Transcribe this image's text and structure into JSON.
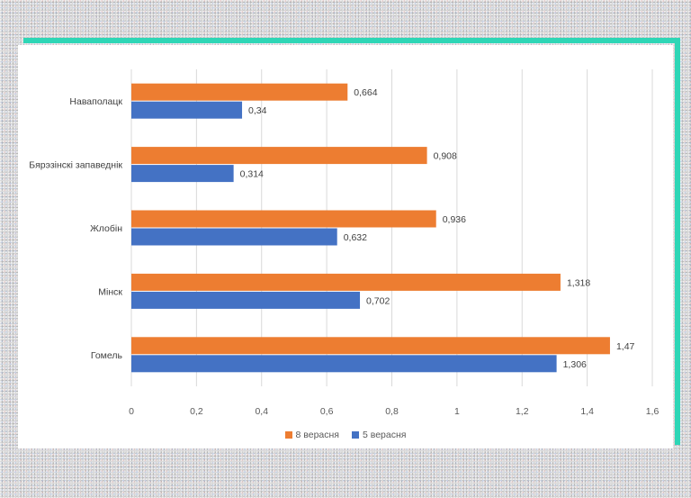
{
  "colors": {
    "frame": "#2ed6b6",
    "series_8": "#ED7D31",
    "series_5": "#4472C4",
    "grid": "#d9d9d9"
  },
  "chart_data": {
    "type": "bar",
    "orientation": "horizontal",
    "categories": [
      "Наваполацк",
      "Бярэзінскі запаведнік",
      "Жлобін",
      "Мінск",
      "Гомель"
    ],
    "series": [
      {
        "name": "8 верасня",
        "values": [
          0.664,
          0.908,
          0.936,
          1.318,
          1.47
        ],
        "labels": [
          "0,664",
          "0,908",
          "0,936",
          "1,318",
          "1,47"
        ]
      },
      {
        "name": "5 верасня",
        "values": [
          0.34,
          0.314,
          0.632,
          0.702,
          1.306
        ],
        "labels": [
          "0,34",
          "0,314",
          "0,632",
          "0,702",
          "1,306"
        ]
      }
    ],
    "xlim": [
      0,
      1.6
    ],
    "xticks": [
      0,
      0.2,
      0.4,
      0.6,
      0.8,
      1,
      1.2,
      1.4,
      1.6
    ],
    "xtick_labels": [
      "0",
      "0,2",
      "0,4",
      "0,6",
      "0,8",
      "1",
      "1,2",
      "1,4",
      "1,6"
    ],
    "grid": true,
    "legend_position": "bottom",
    "title": "",
    "xlabel": "",
    "ylabel": ""
  }
}
